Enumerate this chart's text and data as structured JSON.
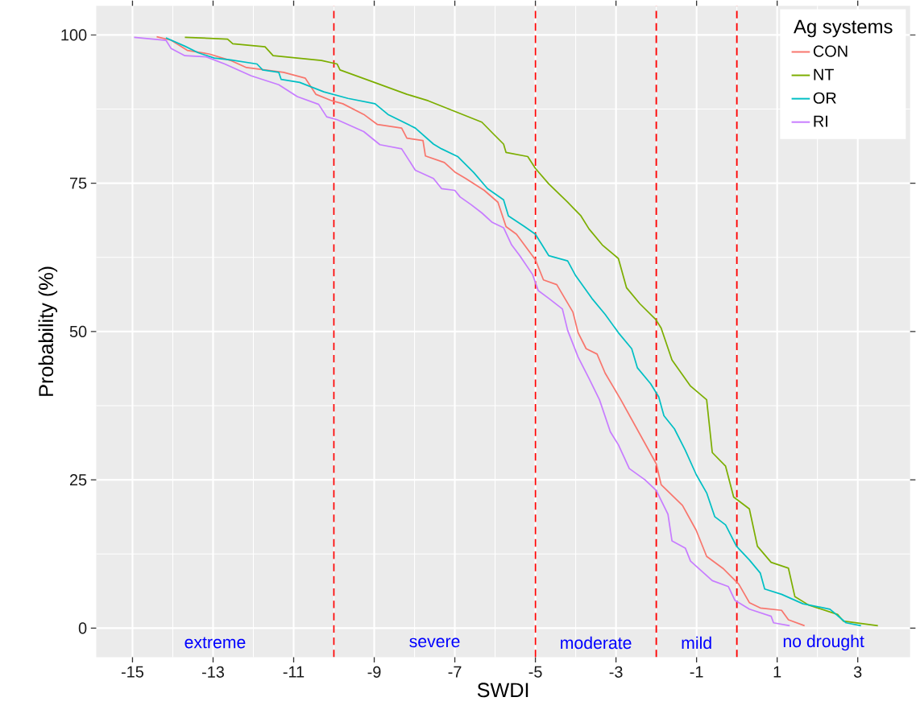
{
  "chart_data": {
    "type": "line",
    "xlabel": "SWDI",
    "ylabel": "Probability (%)",
    "legend_title": "Ag systems",
    "xlim": [
      -15.9,
      4.3
    ],
    "ylim": [
      -4.9,
      104.9
    ],
    "xticks": [
      -15,
      -13,
      -11,
      -9,
      -7,
      -5,
      -3,
      -1,
      1,
      3
    ],
    "yticks": [
      0,
      25,
      50,
      75,
      100
    ],
    "grid": true,
    "legend": "top right",
    "marker": "none",
    "line_style": "solid",
    "series": [
      {
        "name": "CON",
        "color": "#f8766d",
        "x": [
          -14.4,
          -14.04,
          -13.64,
          -13.1,
          -12.57,
          -12.17,
          -11.25,
          -10.71,
          -10.45,
          -10.05,
          -9.78,
          -9.26,
          -8.92,
          -8.32,
          -8.19,
          -7.79,
          -7.73,
          -7.26,
          -7.0,
          -6.73,
          -6.27,
          -5.93,
          -5.73,
          -5.47,
          -5.0,
          -4.8,
          -4.47,
          -4.27,
          -4.07,
          -3.94,
          -3.74,
          -3.47,
          -3.27,
          -2.88,
          -2.0,
          -1.88,
          -1.35,
          -1.01,
          -0.75,
          -0.35,
          0.05,
          0.31,
          0.58,
          1.11,
          1.28,
          1.68
        ],
        "values": [
          99.7,
          99.1,
          97.4,
          96.8,
          95.7,
          94.5,
          93.7,
          92.7,
          90.0,
          88.9,
          88.4,
          86.6,
          84.9,
          84.3,
          82.6,
          82.2,
          79.6,
          78.5,
          76.9,
          75.8,
          73.8,
          71.8,
          67.7,
          66.4,
          62.1,
          58.7,
          57.9,
          55.6,
          53.3,
          49.8,
          47.1,
          46.2,
          43.0,
          38.5,
          27.7,
          24.2,
          20.7,
          16.5,
          12.1,
          10.1,
          7.4,
          4.3,
          3.4,
          3.0,
          1.4,
          0.4
        ]
      },
      {
        "name": "NT",
        "color": "#7cae00",
        "x": [
          -13.7,
          -12.64,
          -12.51,
          -11.71,
          -11.51,
          -10.31,
          -9.92,
          -9.85,
          -9.12,
          -8.19,
          -7.66,
          -6.33,
          -6.07,
          -5.79,
          -5.73,
          -5.19,
          -5.0,
          -4.67,
          -4.2,
          -3.87,
          -3.67,
          -3.34,
          -2.94,
          -2.74,
          -2.41,
          -2.01,
          -1.88,
          -1.61,
          -1.15,
          -0.75,
          -0.61,
          -0.28,
          -0.08,
          0.31,
          0.51,
          0.85,
          1.28,
          1.44,
          1.78,
          2.5,
          2.64,
          3.5
        ],
        "values": [
          99.6,
          99.3,
          98.5,
          98.0,
          96.5,
          95.7,
          95.1,
          94.1,
          92.3,
          90.0,
          88.9,
          85.3,
          83.5,
          81.6,
          80.2,
          79.5,
          77.5,
          74.9,
          71.8,
          69.5,
          67.3,
          64.6,
          62.3,
          57.4,
          54.7,
          52.0,
          50.6,
          45.2,
          40.8,
          38.5,
          29.6,
          27.3,
          22.1,
          20.1,
          13.8,
          11.1,
          10.1,
          5.3,
          3.9,
          2.3,
          1.2,
          0.4
        ]
      },
      {
        "name": "OR",
        "color": "#00bfc4",
        "x": [
          -14.17,
          -13.7,
          -13.37,
          -12.97,
          -12.57,
          -11.91,
          -11.77,
          -11.37,
          -11.31,
          -10.85,
          -10.25,
          -9.65,
          -8.98,
          -8.66,
          -7.98,
          -7.53,
          -7.33,
          -6.93,
          -6.53,
          -6.19,
          -5.79,
          -5.67,
          -5.27,
          -5.0,
          -4.67,
          -4.2,
          -4.0,
          -3.6,
          -3.27,
          -2.94,
          -2.61,
          -2.47,
          -2.14,
          -1.94,
          -1.81,
          -1.55,
          -1.28,
          -1.01,
          -0.75,
          -0.55,
          -0.28,
          -0.01,
          0.31,
          0.58,
          0.69,
          1.11,
          1.64,
          2.31,
          2.71,
          3.08
        ],
        "values": [
          99.5,
          98.1,
          97.0,
          96.1,
          95.8,
          95.1,
          94.1,
          93.7,
          92.5,
          92.0,
          90.4,
          89.3,
          88.4,
          86.6,
          84.3,
          81.6,
          80.8,
          79.5,
          76.8,
          74.1,
          72.2,
          69.5,
          67.7,
          66.4,
          62.8,
          61.9,
          59.4,
          55.6,
          52.9,
          49.8,
          47.1,
          43.9,
          41.2,
          39.0,
          35.8,
          33.6,
          30.0,
          25.9,
          22.8,
          18.8,
          17.4,
          13.8,
          11.5,
          9.3,
          6.6,
          5.7,
          4.1,
          3.2,
          0.9,
          0.4
        ]
      },
      {
        "name": "RI",
        "color": "#c77cff",
        "x": [
          -14.96,
          -14.17,
          -14.04,
          -13.7,
          -13.17,
          -12.71,
          -12.05,
          -11.37,
          -10.91,
          -10.38,
          -10.18,
          -9.92,
          -9.26,
          -8.86,
          -8.32,
          -7.98,
          -7.53,
          -7.33,
          -7.0,
          -6.87,
          -6.6,
          -6.33,
          -6.07,
          -5.79,
          -5.59,
          -5.39,
          -5.07,
          -4.93,
          -4.67,
          -4.33,
          -4.2,
          -3.94,
          -3.67,
          -3.41,
          -3.14,
          -2.94,
          -2.67,
          -2.28,
          -2.0,
          -1.71,
          -1.61,
          -1.28,
          -1.15,
          -0.61,
          -0.21,
          -0.05,
          0.31,
          0.85,
          0.91,
          1.31
        ],
        "values": [
          99.6,
          99.1,
          97.7,
          96.5,
          96.3,
          95.1,
          93.1,
          91.6,
          89.6,
          88.3,
          86.2,
          85.7,
          83.7,
          81.5,
          80.8,
          77.2,
          75.8,
          74.1,
          73.8,
          72.7,
          71.4,
          70.0,
          68.4,
          67.5,
          64.6,
          62.8,
          59.6,
          56.9,
          55.6,
          53.8,
          50.2,
          45.7,
          42.1,
          38.5,
          33.1,
          30.9,
          26.9,
          25.0,
          23.2,
          19.2,
          14.7,
          13.5,
          11.3,
          8.0,
          7.0,
          4.7,
          3.2,
          2.0,
          0.9,
          0.4
        ]
      }
    ],
    "ref_lines": [
      {
        "axis": "x",
        "value": -10,
        "color": "#ff0000",
        "line_style": "dashed"
      },
      {
        "axis": "x",
        "value": -5,
        "color": "#ff0000",
        "line_style": "dashed"
      },
      {
        "axis": "x",
        "value": -2,
        "color": "#ff0000",
        "line_style": "dashed"
      },
      {
        "axis": "x",
        "value": 0,
        "color": "#ff0000",
        "line_style": "dashed"
      }
    ],
    "annotations": [
      "extreme",
      "severe",
      "moderate",
      "mild",
      "no drought"
    ]
  }
}
